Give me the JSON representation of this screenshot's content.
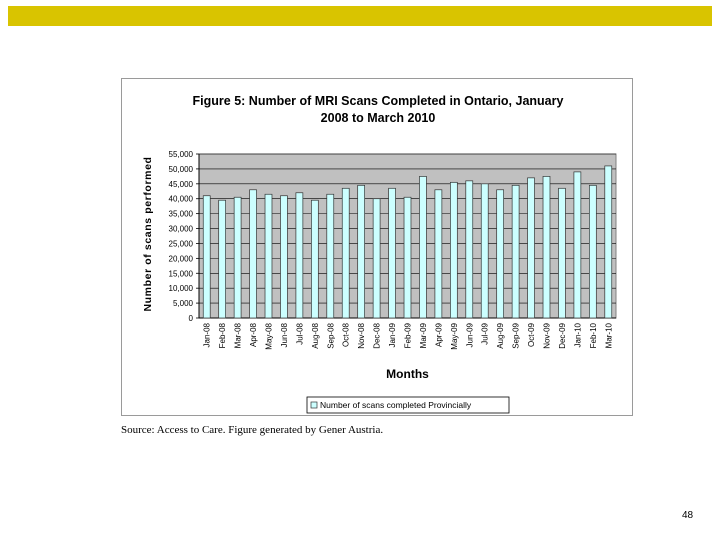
{
  "colors": {
    "top_bar": "#d9c400",
    "plot_background": "#c0c0c0",
    "bar_fill": "#ccffff",
    "bar_stroke": "#333333"
  },
  "footer": {
    "source": "Source: Access to Care.  Figure generated by Gener Austria.",
    "page_number": "48"
  },
  "chart_data": {
    "type": "bar",
    "title_line1": "Figure 5: Number of MRI Scans Completed in Ontario, January",
    "title_line2": "2008 to March 2010",
    "xlabel": "Months",
    "ylabel": "Number of scans performed",
    "ylim": [
      0,
      55000
    ],
    "ytick_step": 5000,
    "yticks": [
      "0",
      "5,000",
      "10,000",
      "15,000",
      "20,000",
      "25,000",
      "30,000",
      "35,000",
      "40,000",
      "45,000",
      "50,000",
      "55,000"
    ],
    "grid": true,
    "legend_position": "bottom",
    "categories": [
      "Jan-08",
      "Feb-08",
      "Mar-08",
      "Apr-08",
      "May-08",
      "Jun-08",
      "Jul-08",
      "Aug-08",
      "Sep-08",
      "Oct-08",
      "Nov-08",
      "Dec-08",
      "Jan-09",
      "Feb-09",
      "Mar-09",
      "Apr-09",
      "May-09",
      "Jun-09",
      "Jul-09",
      "Aug-09",
      "Sep-09",
      "Oct-09",
      "Nov-09",
      "Dec-09",
      "Jan-10",
      "Feb-10",
      "Mar-10"
    ],
    "series": [
      {
        "name": "Number of scans completed Provincially",
        "values": [
          41000,
          39500,
          40500,
          43000,
          41500,
          41000,
          42000,
          39500,
          41500,
          43500,
          44500,
          40000,
          43500,
          40500,
          47500,
          43000,
          45500,
          46000,
          45000,
          43000,
          44500,
          47000,
          47500,
          43500,
          49000,
          44500,
          51000
        ]
      }
    ]
  }
}
